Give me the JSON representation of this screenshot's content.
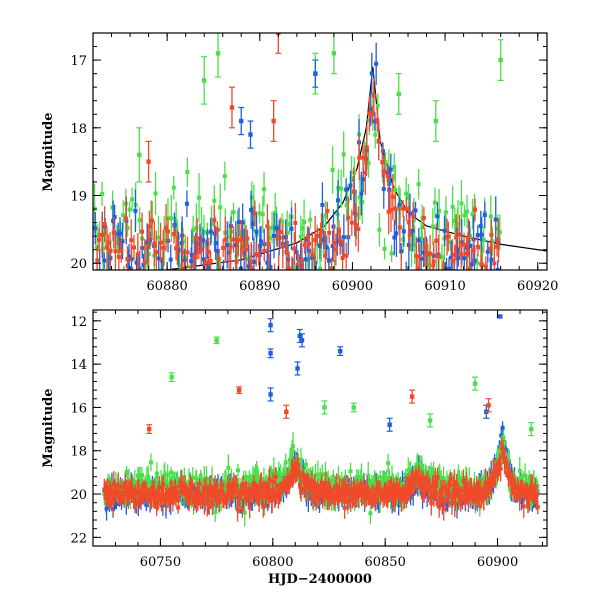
{
  "chart_data": [
    {
      "type": "scatter",
      "title": "",
      "xlabel": "",
      "ylabel": "Magnitude",
      "xlim": [
        60872,
        60921
      ],
      "ylim": [
        20.1,
        16.6
      ],
      "y_inverted": true,
      "grid": false,
      "xticks": [
        60880,
        60890,
        60900,
        60910,
        60920
      ],
      "yticks": [
        17,
        18,
        19,
        20
      ],
      "colors": {
        "blue": "#1f5fe0",
        "red": "#f04a2a",
        "green": "#4be04b",
        "model": "#000000"
      },
      "model_curve": {
        "x": [
          60872,
          60880,
          60888,
          60894,
          60897,
          60899,
          60900.5,
          60901.5,
          60902.2,
          60903,
          60904.5,
          60906,
          60908,
          60912,
          60916,
          60921
        ],
        "y": [
          20.15,
          20.1,
          19.95,
          19.7,
          19.45,
          19.1,
          18.6,
          18.0,
          17.1,
          18.2,
          18.9,
          19.25,
          19.45,
          19.6,
          19.72,
          19.82
        ]
      },
      "series_summary": [
        {
          "color": "blue",
          "baseline_mag": 19.8,
          "x_range": [
            60872,
            60916
          ],
          "peak_mag": 16.9,
          "peak_x": 60902.2
        },
        {
          "color": "red",
          "baseline_mag": 19.8,
          "x_range": [
            60872,
            60916
          ],
          "peak_mag": 17.3,
          "peak_x": 60902.4
        },
        {
          "color": "green",
          "baseline_mag": 19.6,
          "x_range": [
            60872,
            60916
          ],
          "peak_mag": 17.5,
          "peak_x": 60902.0
        }
      ],
      "outliers": [
        {
          "color": "green",
          "x": 60884,
          "y": 17.3,
          "err": 0.35
        },
        {
          "color": "green",
          "x": 60885.5,
          "y": 16.9,
          "err": 0.35
        },
        {
          "color": "green",
          "x": 60896,
          "y": 17.2,
          "err": 0.3
        },
        {
          "color": "green",
          "x": 60898,
          "y": 16.9,
          "err": 0.3
        },
        {
          "color": "green",
          "x": 60905,
          "y": 17.5,
          "err": 0.3
        },
        {
          "color": "green",
          "x": 60916,
          "y": 17.0,
          "err": 0.3
        },
        {
          "color": "green",
          "x": 60877,
          "y": 18.4,
          "err": 0.4
        },
        {
          "color": "green",
          "x": 60909,
          "y": 17.9,
          "err": 0.3
        },
        {
          "color": "blue",
          "x": 60896,
          "y": 17.2,
          "err": 0.2
        },
        {
          "color": "blue",
          "x": 60888,
          "y": 17.9,
          "err": 0.2
        },
        {
          "color": "blue",
          "x": 60889,
          "y": 18.1,
          "err": 0.2
        },
        {
          "color": "red",
          "x": 60892,
          "y": 16.6,
          "err": 0.3
        },
        {
          "color": "red",
          "x": 60887,
          "y": 17.7,
          "err": 0.3
        },
        {
          "color": "red",
          "x": 60878,
          "y": 18.5,
          "err": 0.3
        },
        {
          "color": "red",
          "x": 60891.5,
          "y": 17.9,
          "err": 0.3
        }
      ]
    },
    {
      "type": "scatter",
      "title": "",
      "xlabel": "HJD−2400000",
      "ylabel": "Magnitude",
      "xlim": [
        60720,
        60922
      ],
      "ylim": [
        22.4,
        11.5
      ],
      "y_inverted": true,
      "grid": false,
      "xticks": [
        60750,
        60800,
        60850,
        60900
      ],
      "yticks": [
        12,
        14,
        16,
        18,
        20,
        22
      ],
      "colors": {
        "blue": "#1f5fe0",
        "red": "#f04a2a",
        "green": "#4be04b"
      },
      "series_summary": [
        {
          "color": "blue",
          "baseline_mag": 20.0,
          "x_range": [
            60725,
            60918
          ],
          "peak_mag": 17.0,
          "peak_x": 60902
        },
        {
          "color": "red",
          "baseline_mag": 20.0,
          "x_range": [
            60725,
            60918
          ],
          "peak_mag": 17.8,
          "peak_x": 60902
        },
        {
          "color": "green",
          "baseline_mag": 19.7,
          "x_range": [
            60725,
            60918
          ],
          "peak_mag": 17.5,
          "peak_x": 60902
        }
      ],
      "bumps": [
        {
          "x": 60810,
          "width": 4,
          "depth": 1.3
        },
        {
          "x": 60865,
          "width": 4,
          "depth": 0.8
        },
        {
          "x": 60902,
          "width": 3,
          "depth": 2.5
        }
      ],
      "outliers": [
        {
          "color": "blue",
          "x": 60799,
          "y": 12.2,
          "err": 0.3
        },
        {
          "color": "blue",
          "x": 60799,
          "y": 13.5,
          "err": 0.2
        },
        {
          "color": "blue",
          "x": 60799,
          "y": 15.4,
          "err": 0.3
        },
        {
          "color": "blue",
          "x": 60812,
          "y": 12.7,
          "err": 0.3
        },
        {
          "color": "blue",
          "x": 60813,
          "y": 12.9,
          "err": 0.3
        },
        {
          "color": "blue",
          "x": 60811,
          "y": 14.2,
          "err": 0.3
        },
        {
          "color": "blue",
          "x": 60830,
          "y": 13.4,
          "err": 0.2
        },
        {
          "color": "blue",
          "x": 60901,
          "y": 11.8,
          "err": 0.05
        },
        {
          "color": "blue",
          "x": 60852,
          "y": 16.8,
          "err": 0.3
        },
        {
          "color": "blue",
          "x": 60895,
          "y": 16.2,
          "err": 0.3
        },
        {
          "color": "green",
          "x": 60775,
          "y": 12.9,
          "err": 0.15
        },
        {
          "color": "green",
          "x": 60755,
          "y": 14.6,
          "err": 0.2
        },
        {
          "color": "green",
          "x": 60823,
          "y": 16.0,
          "err": 0.3
        },
        {
          "color": "green",
          "x": 60836,
          "y": 16.0,
          "err": 0.2
        },
        {
          "color": "green",
          "x": 60890,
          "y": 14.9,
          "err": 0.3
        },
        {
          "color": "green",
          "x": 60915,
          "y": 17.0,
          "err": 0.3
        },
        {
          "color": "green",
          "x": 60870,
          "y": 16.6,
          "err": 0.3
        },
        {
          "color": "red",
          "x": 60745,
          "y": 17.0,
          "err": 0.2
        },
        {
          "color": "red",
          "x": 60785,
          "y": 15.2,
          "err": 0.15
        },
        {
          "color": "red",
          "x": 60806,
          "y": 16.2,
          "err": 0.3
        },
        {
          "color": "red",
          "x": 60862,
          "y": 15.5,
          "err": 0.3
        },
        {
          "color": "red",
          "x": 60896,
          "y": 15.9,
          "err": 0.3
        }
      ]
    }
  ]
}
